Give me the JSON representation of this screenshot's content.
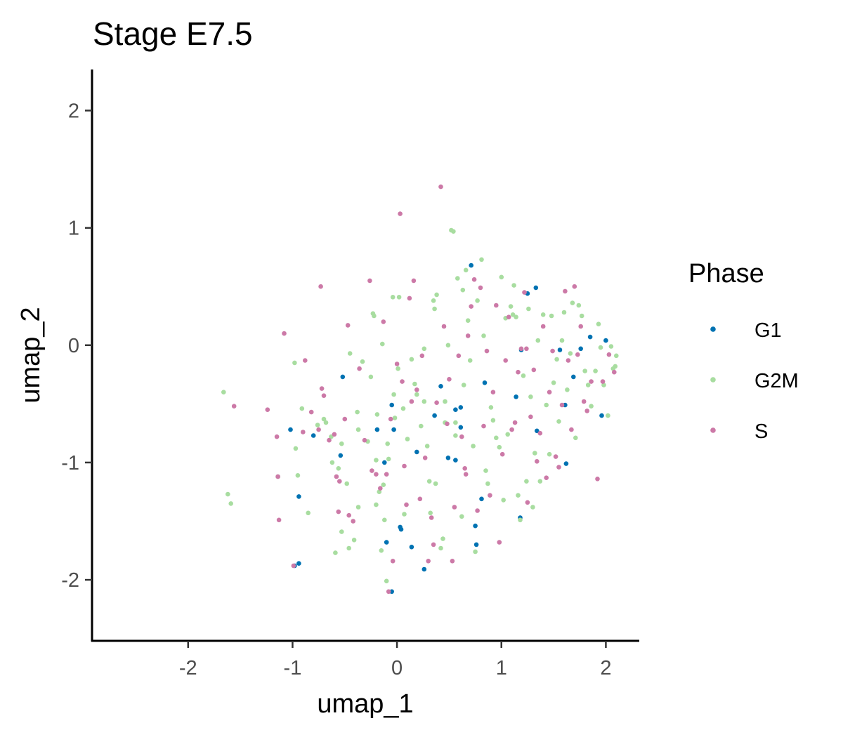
{
  "chart_data": {
    "type": "scatter",
    "title": "Stage E7.5",
    "xlabel": "umap_1",
    "ylabel": "umap_2",
    "xlim": [
      -2.92,
      2.32
    ],
    "ylim": [
      -2.52,
      2.35
    ],
    "xticks": [
      -2,
      -1,
      0,
      1,
      2
    ],
    "yticks": [
      -2,
      -1,
      0,
      1,
      2
    ],
    "xtick_labels": [
      "-2",
      "-1",
      "0",
      "1",
      "2"
    ],
    "ytick_labels": [
      "-2",
      "-1",
      "0",
      "1",
      "2"
    ],
    "grid": false,
    "legend": {
      "title": "Phase",
      "position": "right"
    },
    "series": [
      {
        "name": "G1",
        "color": "#0072b2",
        "points": [
          [
            -1.02,
            -0.72
          ],
          [
            -0.8,
            -0.77
          ],
          [
            -0.94,
            -1.29
          ],
          [
            -0.98,
            -1.88
          ],
          [
            -0.94,
            -1.86
          ],
          [
            -0.52,
            -0.27
          ],
          [
            -0.54,
            -0.94
          ],
          [
            -0.19,
            -0.72
          ],
          [
            -0.12,
            -1.0
          ],
          [
            -0.1,
            -1.68
          ],
          [
            -0.05,
            -2.1
          ],
          [
            -0.05,
            -0.51
          ],
          [
            -0.03,
            -0.72
          ],
          [
            0.03,
            -1.55
          ],
          [
            0.04,
            -1.57
          ],
          [
            0.14,
            -1.72
          ],
          [
            0.19,
            -0.91
          ],
          [
            0.26,
            -1.91
          ],
          [
            0.36,
            -0.6
          ],
          [
            0.42,
            -0.35
          ],
          [
            0.49,
            -0.96
          ],
          [
            0.56,
            -0.98
          ],
          [
            0.56,
            -0.55
          ],
          [
            0.61,
            -0.53
          ],
          [
            0.61,
            -0.7
          ],
          [
            0.71,
            0.68
          ],
          [
            0.75,
            -1.54
          ],
          [
            0.76,
            -1.7
          ],
          [
            0.81,
            -1.31
          ],
          [
            0.84,
            -0.32
          ],
          [
            1.14,
            -0.44
          ],
          [
            1.18,
            -1.47
          ],
          [
            1.19,
            -0.04
          ],
          [
            1.25,
            0.44
          ],
          [
            1.33,
            0.49
          ],
          [
            1.34,
            -0.73
          ],
          [
            1.56,
            -0.04
          ],
          [
            1.61,
            -0.51
          ],
          [
            1.62,
            -1.01
          ],
          [
            1.69,
            -0.27
          ],
          [
            1.76,
            -0.03
          ],
          [
            1.85,
            0.07
          ],
          [
            1.96,
            -0.6
          ],
          [
            2.0,
            0.04
          ]
        ]
      },
      {
        "name": "G2M",
        "color": "#a8dda0",
        "points": [
          [
            -1.66,
            -0.4
          ],
          [
            -1.62,
            -1.27
          ],
          [
            -1.59,
            -1.35
          ],
          [
            -1.14,
            -1.12
          ],
          [
            -0.98,
            -0.15
          ],
          [
            -0.97,
            -0.88
          ],
          [
            -0.95,
            -1.11
          ],
          [
            -0.91,
            -0.54
          ],
          [
            -0.85,
            -1.43
          ],
          [
            -0.76,
            -0.68
          ],
          [
            -0.7,
            -0.63
          ],
          [
            -0.68,
            -0.66
          ],
          [
            -0.63,
            -0.78
          ],
          [
            -0.62,
            -1.0
          ],
          [
            -0.59,
            -1.77
          ],
          [
            -0.56,
            -1.05
          ],
          [
            -0.53,
            -0.84
          ],
          [
            -0.53,
            -1.59
          ],
          [
            -0.48,
            -1.18
          ],
          [
            -0.46,
            -1.73
          ],
          [
            -0.45,
            -0.07
          ],
          [
            -0.41,
            -1.66
          ],
          [
            -0.38,
            -0.57
          ],
          [
            -0.37,
            -0.72
          ],
          [
            -0.37,
            -1.38
          ],
          [
            -0.33,
            -0.14
          ],
          [
            -0.28,
            -0.82
          ],
          [
            -0.25,
            -0.27
          ],
          [
            -0.23,
            0.27
          ],
          [
            -0.22,
            0.25
          ],
          [
            -0.2,
            -0.98
          ],
          [
            -0.2,
            -1.36
          ],
          [
            -0.19,
            -0.59
          ],
          [
            -0.17,
            -1.25
          ],
          [
            -0.15,
            -1.75
          ],
          [
            -0.14,
            0.01
          ],
          [
            -0.13,
            -1.19
          ],
          [
            -0.12,
            -1.49
          ],
          [
            -0.1,
            -2.01
          ],
          [
            -0.09,
            -0.84
          ],
          [
            -0.08,
            -0.97
          ],
          [
            -0.04,
            0.41
          ],
          [
            -0.03,
            -0.42
          ],
          [
            -0.02,
            -0.62
          ],
          [
            0.01,
            -0.2
          ],
          [
            0.02,
            0.41
          ],
          [
            0.06,
            -0.54
          ],
          [
            0.07,
            -1.44
          ],
          [
            0.1,
            -0.8
          ],
          [
            0.14,
            -0.12
          ],
          [
            0.17,
            -0.33
          ],
          [
            0.19,
            -0.42
          ],
          [
            0.23,
            -0.69
          ],
          [
            0.26,
            -0.48
          ],
          [
            0.26,
            -0.03
          ],
          [
            0.29,
            -0.86
          ],
          [
            0.31,
            -1.16
          ],
          [
            0.32,
            -1.43
          ],
          [
            0.35,
            0.38
          ],
          [
            0.36,
            0.31
          ],
          [
            0.37,
            -1.18
          ],
          [
            0.38,
            0.43
          ],
          [
            0.42,
            -1.73
          ],
          [
            0.44,
            -1.65
          ],
          [
            0.46,
            -0.48
          ],
          [
            0.46,
            -0.66
          ],
          [
            0.49,
            0.0
          ],
          [
            0.52,
            0.98
          ],
          [
            0.54,
            0.97
          ],
          [
            0.56,
            -0.77
          ],
          [
            0.56,
            -0.66
          ],
          [
            0.58,
            0.57
          ],
          [
            0.62,
            -1.46
          ],
          [
            0.63,
            0.47
          ],
          [
            0.64,
            -0.34
          ],
          [
            0.66,
            0.64
          ],
          [
            0.68,
            0.21
          ],
          [
            0.7,
            -0.13
          ],
          [
            0.73,
            -0.86
          ],
          [
            0.75,
            -1.76
          ],
          [
            0.77,
            0.38
          ],
          [
            0.81,
            0.73
          ],
          [
            0.83,
            0.08
          ],
          [
            0.85,
            -1.07
          ],
          [
            0.87,
            -1.18
          ],
          [
            0.9,
            -0.53
          ],
          [
            0.92,
            -0.64
          ],
          [
            0.95,
            -0.79
          ],
          [
            0.98,
            -0.87
          ],
          [
            1.0,
            0.58
          ],
          [
            1.02,
            -1.32
          ],
          [
            1.04,
            0.23
          ],
          [
            1.06,
            -0.76
          ],
          [
            1.09,
            0.33
          ],
          [
            1.11,
            0.26
          ],
          [
            1.12,
            0.51
          ],
          [
            1.14,
            0.24
          ],
          [
            1.16,
            -1.28
          ],
          [
            1.18,
            -1.49
          ],
          [
            1.21,
            -0.26
          ],
          [
            1.24,
            -1.16
          ],
          [
            1.26,
            0.31
          ],
          [
            1.28,
            -0.44
          ],
          [
            1.3,
            -1.38
          ],
          [
            1.32,
            -0.92
          ],
          [
            1.35,
            0.04
          ],
          [
            1.37,
            -1.16
          ],
          [
            1.4,
            0.26
          ],
          [
            1.43,
            -0.51
          ],
          [
            1.46,
            -0.93
          ],
          [
            1.48,
            0.25
          ],
          [
            1.5,
            -0.32
          ],
          [
            1.53,
            -0.12
          ],
          [
            1.55,
            -0.65
          ],
          [
            1.58,
            0.04
          ],
          [
            1.6,
            0.28
          ],
          [
            1.63,
            -0.38
          ],
          [
            1.66,
            -0.07
          ],
          [
            1.68,
            0.36
          ],
          [
            1.71,
            -0.79
          ],
          [
            1.74,
            0.34
          ],
          [
            1.77,
            0.25
          ],
          [
            1.8,
            -0.22
          ],
          [
            1.83,
            -0.34
          ],
          [
            1.86,
            -0.52
          ],
          [
            1.9,
            -0.22
          ],
          [
            1.93,
            0.18
          ],
          [
            1.95,
            -0.02
          ],
          [
            1.98,
            -0.34
          ],
          [
            2.02,
            -0.6
          ],
          [
            2.05,
            -0.01
          ],
          [
            2.07,
            -0.2
          ],
          [
            2.09,
            -0.18
          ],
          [
            2.1,
            -0.09
          ]
        ]
      },
      {
        "name": "S",
        "color": "#cc79a7",
        "points": [
          [
            -1.56,
            -0.52
          ],
          [
            -1.24,
            -0.55
          ],
          [
            -1.15,
            -0.78
          ],
          [
            -1.14,
            -1.12
          ],
          [
            -1.13,
            -1.49
          ],
          [
            -1.08,
            0.1
          ],
          [
            -0.99,
            -1.88
          ],
          [
            -0.88,
            -0.13
          ],
          [
            -0.82,
            -0.57
          ],
          [
            -0.75,
            -0.72
          ],
          [
            -0.73,
            0.5
          ],
          [
            -0.72,
            -0.37
          ],
          [
            -0.7,
            -0.43
          ],
          [
            -0.65,
            -0.81
          ],
          [
            -0.6,
            -0.76
          ],
          [
            -0.58,
            -1.12
          ],
          [
            -0.56,
            -1.42
          ],
          [
            -0.55,
            -1.16
          ],
          [
            -0.5,
            -0.63
          ],
          [
            -0.46,
            -1.45
          ],
          [
            -0.47,
            0.17
          ],
          [
            -0.42,
            -1.5
          ],
          [
            -0.36,
            -0.2
          ],
          [
            -0.31,
            -0.81
          ],
          [
            -0.26,
            0.55
          ],
          [
            -0.24,
            -1.07
          ],
          [
            -0.2,
            -1.1
          ],
          [
            -0.16,
            -1.22
          ],
          [
            -0.13,
            0.2
          ],
          [
            -0.1,
            -1.1
          ],
          [
            -0.08,
            -2.1
          ],
          [
            -0.06,
            -0.63
          ],
          [
            -0.04,
            -1.84
          ],
          [
            0.0,
            -0.16
          ],
          [
            0.03,
            1.12
          ],
          [
            0.05,
            -0.31
          ],
          [
            0.07,
            -1.03
          ],
          [
            0.09,
            -1.36
          ],
          [
            0.12,
            0.4
          ],
          [
            0.14,
            -0.48
          ],
          [
            0.16,
            0.55
          ],
          [
            0.19,
            -0.38
          ],
          [
            0.22,
            -1.31
          ],
          [
            0.24,
            -0.09
          ],
          [
            0.27,
            -0.96
          ],
          [
            0.3,
            -1.84
          ],
          [
            0.33,
            -1.47
          ],
          [
            0.35,
            -1.7
          ],
          [
            0.38,
            -0.49
          ],
          [
            0.42,
            1.35
          ],
          [
            0.45,
            0.16
          ],
          [
            0.48,
            -0.67
          ],
          [
            0.5,
            -0.29
          ],
          [
            0.53,
            -1.84
          ],
          [
            0.55,
            -1.38
          ],
          [
            0.59,
            -0.09
          ],
          [
            0.62,
            -0.78
          ],
          [
            0.65,
            -1.05
          ],
          [
            0.68,
            0.08
          ],
          [
            0.71,
            0.33
          ],
          [
            0.74,
            0.56
          ],
          [
            0.77,
            -1.41
          ],
          [
            0.8,
            0.49
          ],
          [
            0.83,
            -0.69
          ],
          [
            0.86,
            -0.05
          ],
          [
            0.89,
            -1.28
          ],
          [
            0.92,
            -0.4
          ],
          [
            0.95,
            0.34
          ],
          [
            0.98,
            -1.68
          ],
          [
            1.01,
            -0.93
          ],
          [
            1.04,
            -0.13
          ],
          [
            1.07,
            0.24
          ],
          [
            1.1,
            -0.72
          ],
          [
            1.13,
            -0.66
          ],
          [
            1.16,
            -0.23
          ],
          [
            1.19,
            -0.03
          ],
          [
            1.22,
            0.45
          ],
          [
            1.25,
            -1.34
          ],
          [
            1.28,
            -0.61
          ],
          [
            1.31,
            -0.21
          ],
          [
            1.34,
            -0.99
          ],
          [
            1.37,
            -0.75
          ],
          [
            1.4,
            0.16
          ],
          [
            1.43,
            -1.13
          ],
          [
            1.46,
            -0.4
          ],
          [
            1.49,
            -0.05
          ],
          [
            1.52,
            -0.95
          ],
          [
            1.55,
            -1.04
          ],
          [
            1.58,
            -0.51
          ],
          [
            1.61,
            0.46
          ],
          [
            1.64,
            -0.13
          ],
          [
            1.67,
            -0.72
          ],
          [
            1.7,
            0.5
          ],
          [
            1.73,
            -0.08
          ],
          [
            1.76,
            0.16
          ],
          [
            1.79,
            -0.48
          ],
          [
            1.82,
            -0.56
          ],
          [
            1.86,
            -0.31
          ],
          [
            1.92,
            -1.14
          ],
          [
            1.97,
            -0.31
          ],
          [
            2.03,
            -0.08
          ],
          [
            2.08,
            -0.23
          ],
          [
            -0.9,
            -0.74
          ],
          [
            0.66,
            -1.1
          ],
          [
            1.24,
            -0.03
          ]
        ]
      }
    ]
  }
}
